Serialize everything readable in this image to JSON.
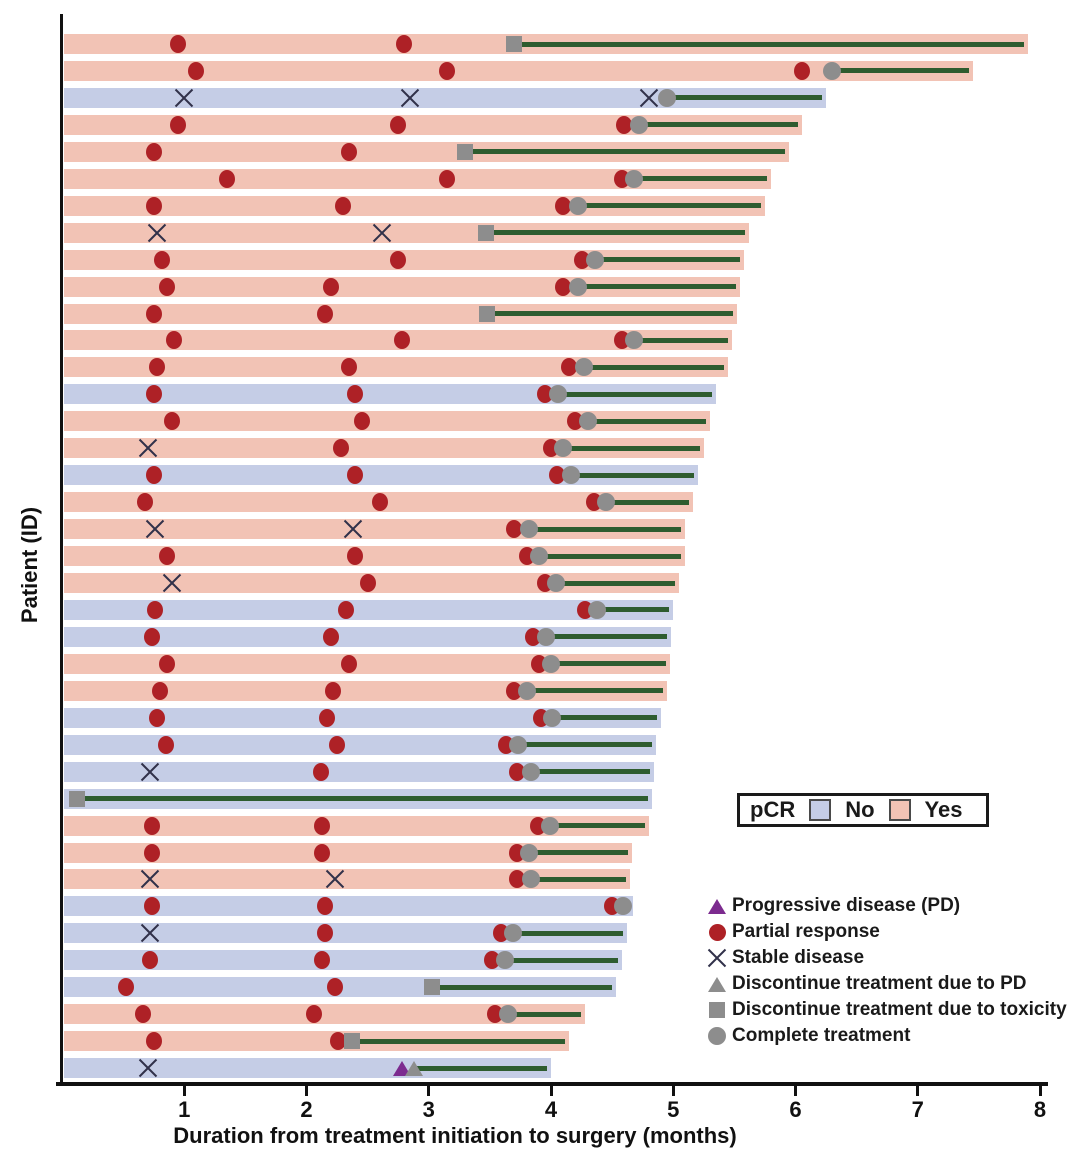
{
  "axis": {
    "x_label": "Duration from treatment initiation to surgery (months)",
    "y_label": "Patient (ID)",
    "x_ticks": [
      1,
      2,
      3,
      4,
      5,
      6,
      7,
      8
    ],
    "x_min": 0,
    "x_max": 8
  },
  "pcr_legend": {
    "title": "pCR",
    "no_label": "No",
    "yes_label": "Yes",
    "no_color": "#c5cde6",
    "yes_color": "#f2c3b5"
  },
  "marker_legend": [
    {
      "marker": "pd",
      "label": "Progressive disease (PD)"
    },
    {
      "marker": "pr",
      "label": "Partial response"
    },
    {
      "marker": "sd",
      "label": "Stable disease"
    },
    {
      "marker": "disc_pd",
      "label": "Discontinue treatment due to PD"
    },
    {
      "marker": "disc_tox",
      "label": "Discontinue treatment due to toxicity"
    },
    {
      "marker": "complete",
      "label": "Complete treatment"
    }
  ],
  "colors": {
    "bar_pcr_yes": "#f2c3b5",
    "bar_pcr_no": "#c5cde6",
    "partial_response": "#ae2126",
    "progressive_disease": "#7c2b8f",
    "discontinue_gray": "#8d8d8d",
    "surgery_line_green": "#2e5c2f",
    "axis_black": "#111111"
  },
  "chart_data": {
    "type": "bar",
    "subtype": "swimmer-plot",
    "title": "",
    "xlabel": "Duration from treatment initiation to surgery (months)",
    "ylabel": "Patient (ID)",
    "xlim": [
      0,
      8
    ],
    "event_types": [
      "pr = partial response",
      "sd = stable disease",
      "pd = progressive disease",
      "disc_pd = discontinue treatment due to PD",
      "disc_tox = discontinue treatment due to toxicity",
      "complete = complete treatment"
    ],
    "patients": [
      {
        "pcr": "yes",
        "end": 7.9,
        "events": [
          {
            "type": "pr",
            "x": 0.95
          },
          {
            "type": "pr",
            "x": 2.8
          },
          {
            "type": "disc_tox",
            "x": 3.7
          }
        ]
      },
      {
        "pcr": "yes",
        "end": 7.45,
        "events": [
          {
            "type": "pr",
            "x": 1.1
          },
          {
            "type": "pr",
            "x": 3.15
          },
          {
            "type": "pr",
            "x": 6.05
          },
          {
            "type": "complete",
            "x": 6.3
          }
        ]
      },
      {
        "pcr": "no",
        "end": 6.25,
        "events": [
          {
            "type": "sd",
            "x": 1.0
          },
          {
            "type": "sd",
            "x": 2.85
          },
          {
            "type": "sd",
            "x": 4.8
          },
          {
            "type": "complete",
            "x": 4.95
          }
        ]
      },
      {
        "pcr": "yes",
        "end": 6.05,
        "events": [
          {
            "type": "pr",
            "x": 0.95
          },
          {
            "type": "pr",
            "x": 2.75
          },
          {
            "type": "pr",
            "x": 4.6
          },
          {
            "type": "complete",
            "x": 4.72
          }
        ]
      },
      {
        "pcr": "yes",
        "end": 5.95,
        "events": [
          {
            "type": "pr",
            "x": 0.75
          },
          {
            "type": "pr",
            "x": 2.35
          },
          {
            "type": "disc_tox",
            "x": 3.3
          }
        ]
      },
      {
        "pcr": "yes",
        "end": 5.8,
        "events": [
          {
            "type": "pr",
            "x": 1.35
          },
          {
            "type": "pr",
            "x": 3.15
          },
          {
            "type": "pr",
            "x": 4.58
          },
          {
            "type": "complete",
            "x": 4.68
          }
        ]
      },
      {
        "pcr": "yes",
        "end": 5.75,
        "events": [
          {
            "type": "pr",
            "x": 0.75
          },
          {
            "type": "pr",
            "x": 2.3
          },
          {
            "type": "pr",
            "x": 4.1
          },
          {
            "type": "complete",
            "x": 4.22
          }
        ]
      },
      {
        "pcr": "yes",
        "end": 5.62,
        "events": [
          {
            "type": "sd",
            "x": 0.78
          },
          {
            "type": "sd",
            "x": 2.62
          },
          {
            "type": "disc_tox",
            "x": 3.47
          }
        ]
      },
      {
        "pcr": "yes",
        "end": 5.58,
        "events": [
          {
            "type": "pr",
            "x": 0.82
          },
          {
            "type": "pr",
            "x": 2.75
          },
          {
            "type": "pr",
            "x": 4.25
          },
          {
            "type": "complete",
            "x": 4.36
          }
        ]
      },
      {
        "pcr": "yes",
        "end": 5.55,
        "events": [
          {
            "type": "pr",
            "x": 0.86
          },
          {
            "type": "pr",
            "x": 2.2
          },
          {
            "type": "pr",
            "x": 4.1
          },
          {
            "type": "complete",
            "x": 4.22
          }
        ]
      },
      {
        "pcr": "yes",
        "end": 5.52,
        "events": [
          {
            "type": "pr",
            "x": 0.75
          },
          {
            "type": "pr",
            "x": 2.15
          },
          {
            "type": "disc_tox",
            "x": 3.48
          }
        ]
      },
      {
        "pcr": "yes",
        "end": 5.48,
        "events": [
          {
            "type": "pr",
            "x": 0.92
          },
          {
            "type": "pr",
            "x": 2.78
          },
          {
            "type": "pr",
            "x": 4.58
          },
          {
            "type": "complete",
            "x": 4.68
          }
        ]
      },
      {
        "pcr": "yes",
        "end": 5.45,
        "events": [
          {
            "type": "pr",
            "x": 0.78
          },
          {
            "type": "pr",
            "x": 2.35
          },
          {
            "type": "pr",
            "x": 4.15
          },
          {
            "type": "complete",
            "x": 4.27
          }
        ]
      },
      {
        "pcr": "no",
        "end": 5.35,
        "events": [
          {
            "type": "pr",
            "x": 0.75
          },
          {
            "type": "pr",
            "x": 2.4
          },
          {
            "type": "pr",
            "x": 3.95
          },
          {
            "type": "complete",
            "x": 4.06
          }
        ]
      },
      {
        "pcr": "yes",
        "end": 5.3,
        "events": [
          {
            "type": "pr",
            "x": 0.9
          },
          {
            "type": "pr",
            "x": 2.45
          },
          {
            "type": "pr",
            "x": 4.2
          },
          {
            "type": "complete",
            "x": 4.3
          }
        ]
      },
      {
        "pcr": "yes",
        "end": 5.25,
        "events": [
          {
            "type": "sd",
            "x": 0.7
          },
          {
            "type": "pr",
            "x": 2.28
          },
          {
            "type": "pr",
            "x": 4.0
          },
          {
            "type": "complete",
            "x": 4.1
          }
        ]
      },
      {
        "pcr": "no",
        "end": 5.2,
        "events": [
          {
            "type": "pr",
            "x": 0.75
          },
          {
            "type": "pr",
            "x": 2.4
          },
          {
            "type": "pr",
            "x": 4.05
          },
          {
            "type": "complete",
            "x": 4.16
          }
        ]
      },
      {
        "pcr": "yes",
        "end": 5.16,
        "events": [
          {
            "type": "pr",
            "x": 0.68
          },
          {
            "type": "pr",
            "x": 2.6
          },
          {
            "type": "pr",
            "x": 4.35
          },
          {
            "type": "complete",
            "x": 4.45
          }
        ]
      },
      {
        "pcr": "yes",
        "end": 5.1,
        "events": [
          {
            "type": "sd",
            "x": 0.76
          },
          {
            "type": "sd",
            "x": 2.38
          },
          {
            "type": "pr",
            "x": 3.7
          },
          {
            "type": "complete",
            "x": 3.82
          }
        ]
      },
      {
        "pcr": "yes",
        "end": 5.1,
        "events": [
          {
            "type": "pr",
            "x": 0.86
          },
          {
            "type": "pr",
            "x": 2.4
          },
          {
            "type": "pr",
            "x": 3.8
          },
          {
            "type": "complete",
            "x": 3.9
          }
        ]
      },
      {
        "pcr": "yes",
        "end": 5.05,
        "events": [
          {
            "type": "sd",
            "x": 0.9
          },
          {
            "type": "pr",
            "x": 2.5
          },
          {
            "type": "pr",
            "x": 3.95
          },
          {
            "type": "complete",
            "x": 4.04
          }
        ]
      },
      {
        "pcr": "no",
        "end": 5.0,
        "events": [
          {
            "type": "pr",
            "x": 0.76
          },
          {
            "type": "pr",
            "x": 2.32
          },
          {
            "type": "pr",
            "x": 4.28
          },
          {
            "type": "complete",
            "x": 4.38
          }
        ]
      },
      {
        "pcr": "no",
        "end": 4.98,
        "events": [
          {
            "type": "pr",
            "x": 0.74
          },
          {
            "type": "pr",
            "x": 2.2
          },
          {
            "type": "pr",
            "x": 3.85
          },
          {
            "type": "complete",
            "x": 3.96
          }
        ]
      },
      {
        "pcr": "yes",
        "end": 4.97,
        "events": [
          {
            "type": "pr",
            "x": 0.86
          },
          {
            "type": "pr",
            "x": 2.35
          },
          {
            "type": "pr",
            "x": 3.9
          },
          {
            "type": "complete",
            "x": 4.0
          }
        ]
      },
      {
        "pcr": "yes",
        "end": 4.95,
        "events": [
          {
            "type": "pr",
            "x": 0.8
          },
          {
            "type": "pr",
            "x": 2.22
          },
          {
            "type": "pr",
            "x": 3.7
          },
          {
            "type": "complete",
            "x": 3.8
          }
        ]
      },
      {
        "pcr": "no",
        "end": 4.9,
        "events": [
          {
            "type": "pr",
            "x": 0.78
          },
          {
            "type": "pr",
            "x": 2.17
          },
          {
            "type": "pr",
            "x": 3.92
          },
          {
            "type": "complete",
            "x": 4.01
          }
        ]
      },
      {
        "pcr": "no",
        "end": 4.86,
        "events": [
          {
            "type": "pr",
            "x": 0.85
          },
          {
            "type": "pr",
            "x": 2.25
          },
          {
            "type": "pr",
            "x": 3.63
          },
          {
            "type": "complete",
            "x": 3.73
          }
        ]
      },
      {
        "pcr": "no",
        "end": 4.84,
        "events": [
          {
            "type": "sd",
            "x": 0.72
          },
          {
            "type": "pr",
            "x": 2.12
          },
          {
            "type": "pr",
            "x": 3.72
          },
          {
            "type": "complete",
            "x": 3.84
          }
        ]
      },
      {
        "pcr": "no",
        "end": 4.83,
        "events": [
          {
            "type": "disc_tox",
            "x": 0.12
          }
        ]
      },
      {
        "pcr": "yes",
        "end": 4.8,
        "events": [
          {
            "type": "pr",
            "x": 0.74
          },
          {
            "type": "pr",
            "x": 2.13
          },
          {
            "type": "pr",
            "x": 3.89
          },
          {
            "type": "complete",
            "x": 3.99
          }
        ]
      },
      {
        "pcr": "yes",
        "end": 4.66,
        "events": [
          {
            "type": "pr",
            "x": 0.74
          },
          {
            "type": "pr",
            "x": 2.13
          },
          {
            "type": "pr",
            "x": 3.72
          },
          {
            "type": "complete",
            "x": 3.82
          }
        ]
      },
      {
        "pcr": "yes",
        "end": 4.65,
        "events": [
          {
            "type": "sd",
            "x": 0.72
          },
          {
            "type": "sd",
            "x": 2.23
          },
          {
            "type": "pr",
            "x": 3.72
          },
          {
            "type": "complete",
            "x": 3.84
          }
        ]
      },
      {
        "pcr": "no",
        "end": 4.67,
        "events": [
          {
            "type": "pr",
            "x": 0.74
          },
          {
            "type": "pr",
            "x": 2.15
          },
          {
            "type": "pr",
            "x": 4.5
          },
          {
            "type": "complete",
            "x": 4.59
          }
        ]
      },
      {
        "pcr": "no",
        "end": 4.62,
        "events": [
          {
            "type": "sd",
            "x": 0.72
          },
          {
            "type": "pr",
            "x": 2.15
          },
          {
            "type": "pr",
            "x": 3.59
          },
          {
            "type": "complete",
            "x": 3.69
          }
        ]
      },
      {
        "pcr": "no",
        "end": 4.58,
        "events": [
          {
            "type": "pr",
            "x": 0.72
          },
          {
            "type": "pr",
            "x": 2.13
          },
          {
            "type": "pr",
            "x": 3.52
          },
          {
            "type": "complete",
            "x": 3.62
          }
        ]
      },
      {
        "pcr": "no",
        "end": 4.53,
        "events": [
          {
            "type": "pr",
            "x": 0.52
          },
          {
            "type": "pr",
            "x": 2.23
          },
          {
            "type": "disc_tox",
            "x": 3.03
          }
        ]
      },
      {
        "pcr": "yes",
        "end": 4.28,
        "events": [
          {
            "type": "pr",
            "x": 0.66
          },
          {
            "type": "pr",
            "x": 2.06
          },
          {
            "type": "pr",
            "x": 3.54
          },
          {
            "type": "complete",
            "x": 3.65
          }
        ]
      },
      {
        "pcr": "yes",
        "end": 4.15,
        "events": [
          {
            "type": "pr",
            "x": 0.75
          },
          {
            "type": "pr",
            "x": 2.26
          },
          {
            "type": "disc_tox",
            "x": 2.37
          }
        ]
      },
      {
        "pcr": "no",
        "end": 4.0,
        "events": [
          {
            "type": "sd",
            "x": 0.7
          },
          {
            "type": "pd",
            "x": 2.78
          },
          {
            "type": "disc_pd",
            "x": 2.88
          }
        ]
      }
    ]
  }
}
